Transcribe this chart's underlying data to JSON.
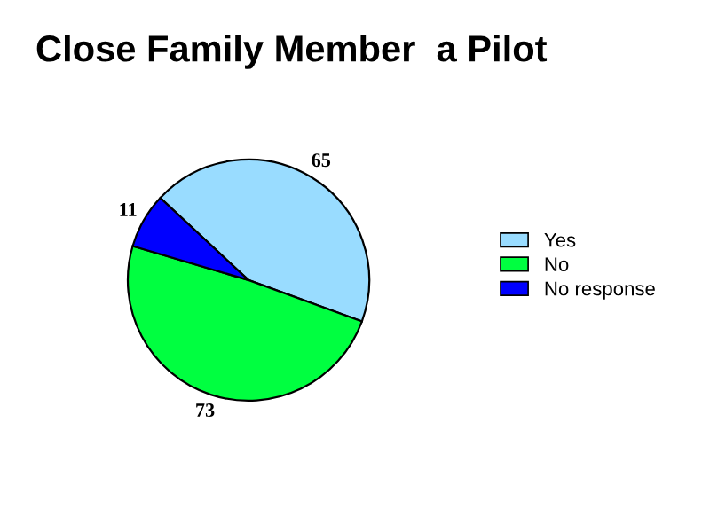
{
  "chart_data": {
    "type": "pie",
    "title": "Close Family Member  a Pilot",
    "categories": [
      "Yes",
      "No",
      "No response"
    ],
    "values": [
      65,
      73,
      11
    ],
    "colors": [
      "#99dcff",
      "#00ff40",
      "#0000ff"
    ],
    "data_labels": true,
    "legend": "right"
  }
}
